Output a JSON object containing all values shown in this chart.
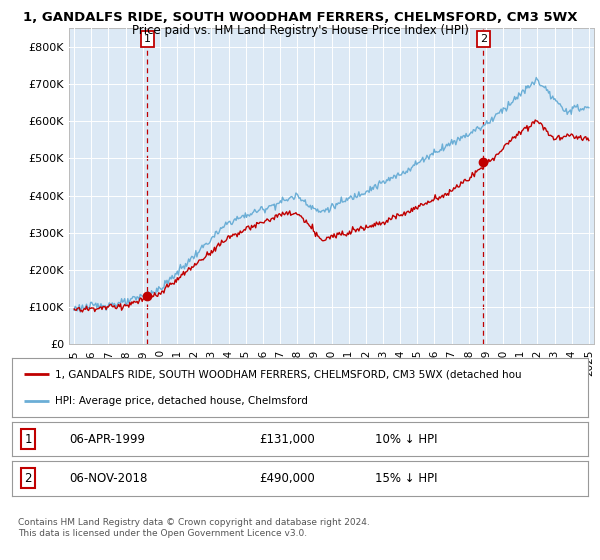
{
  "title_line1": "1, GANDALFS RIDE, SOUTH WOODHAM FERRERS, CHELMSFORD, CM3 5WX",
  "title_line2": "Price paid vs. HM Land Registry's House Price Index (HPI)",
  "ylabel_ticks": [
    "£0",
    "£100K",
    "£200K",
    "£300K",
    "£400K",
    "£500K",
    "£600K",
    "£700K",
    "£800K"
  ],
  "ytick_values": [
    0,
    100000,
    200000,
    300000,
    400000,
    500000,
    600000,
    700000,
    800000
  ],
  "ylim": [
    0,
    850000
  ],
  "hpi_color": "#6baed6",
  "price_color": "#c00000",
  "sale1_year": 1999.27,
  "sale1_price": 131000,
  "sale2_year": 2018.85,
  "sale2_price": 490000,
  "legend_line1": "1, GANDALFS RIDE, SOUTH WOODHAM FERRERS, CHELMSFORD, CM3 5WX (detached hou",
  "legend_line2": "HPI: Average price, detached house, Chelmsford",
  "footer_line1": "Contains HM Land Registry data © Crown copyright and database right 2024.",
  "footer_line2": "This data is licensed under the Open Government Licence v3.0.",
  "table_row1": [
    "1",
    "06-APR-1999",
    "£131,000",
    "10% ↓ HPI"
  ],
  "table_row2": [
    "2",
    "06-NOV-2018",
    "£490,000",
    "15% ↓ HPI"
  ],
  "background_color": "#ffffff",
  "chart_bg_color": "#dce9f5",
  "grid_color": "#ffffff"
}
